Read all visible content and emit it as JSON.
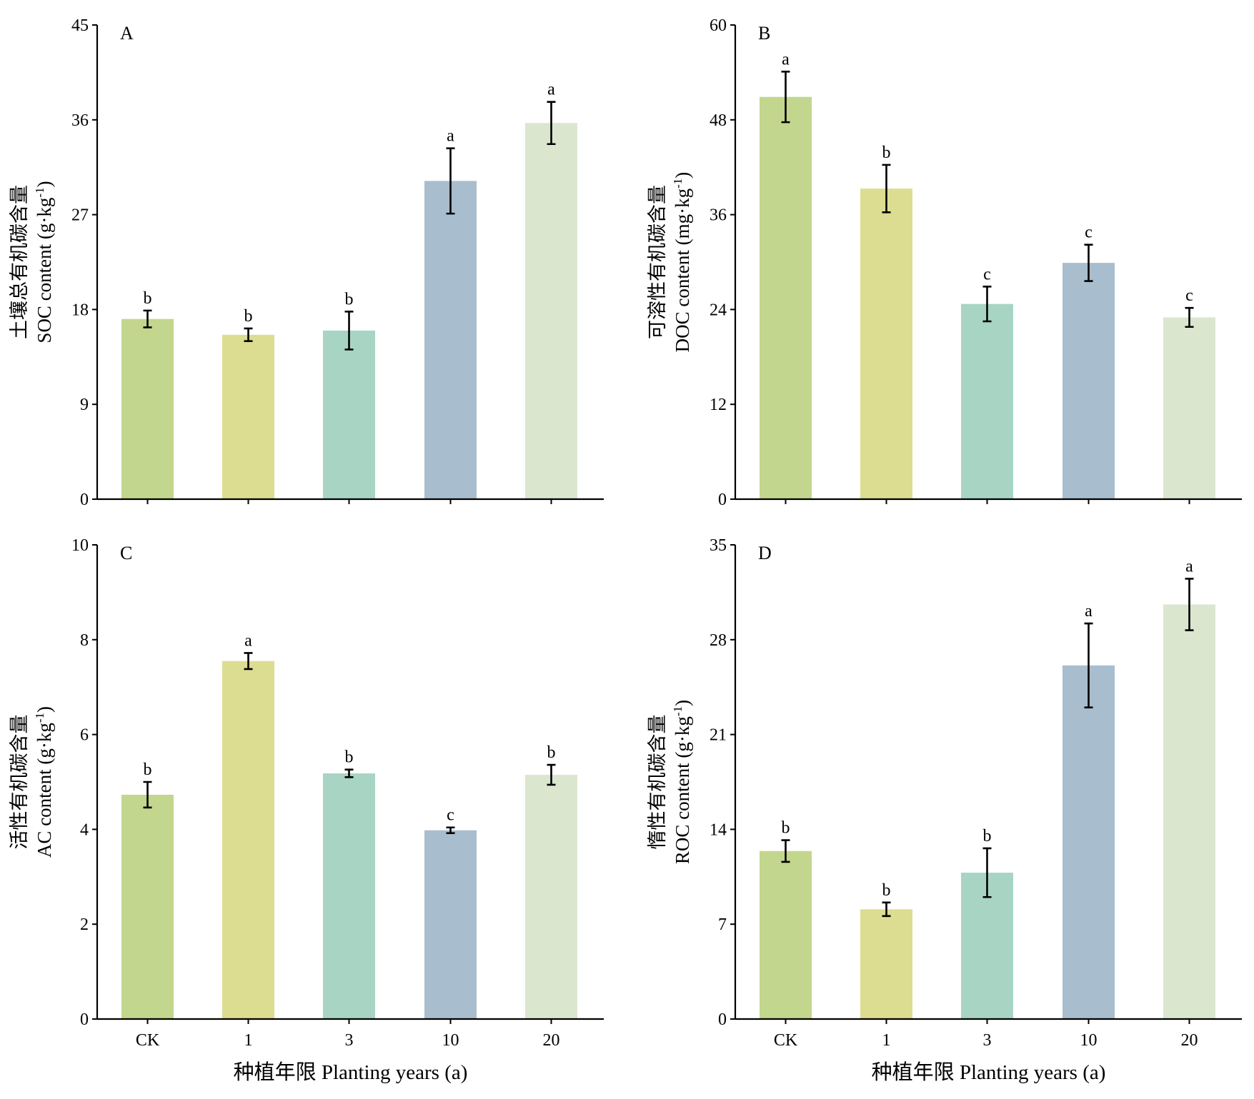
{
  "chart_data": [
    {
      "type": "bar",
      "panel": "A",
      "categories": [
        "CK",
        "1",
        "3",
        "10",
        "20"
      ],
      "values": [
        17.1,
        15.6,
        16.0,
        30.2,
        35.7
      ],
      "errors": [
        0.8,
        0.6,
        1.8,
        3.1,
        2.0
      ],
      "significance": [
        "b",
        "b",
        "b",
        "a",
        "a"
      ],
      "ylabel_cn": "土壤总有机碳含量",
      "ylabel_en": "SOC content (g·kg",
      "ylabel_sup": "-1",
      "ylabel_end": ")",
      "ylim": [
        0,
        45
      ],
      "yticks": [
        "0",
        "9",
        "18",
        "27",
        "36",
        "45"
      ]
    },
    {
      "type": "bar",
      "panel": "B",
      "categories": [
        "CK",
        "1",
        "3",
        "10",
        "20"
      ],
      "values": [
        50.9,
        39.3,
        24.7,
        29.9,
        23.0
      ],
      "errors": [
        3.2,
        3.0,
        2.2,
        2.3,
        1.2
      ],
      "significance": [
        "a",
        "b",
        "c",
        "c",
        "c"
      ],
      "ylabel_cn": "可溶性有机碳含量",
      "ylabel_en": "DOC content (mg·kg",
      "ylabel_sup": "-1",
      "ylabel_end": ")",
      "ylim": [
        0,
        60
      ],
      "yticks": [
        "0",
        "12",
        "24",
        "36",
        "48",
        "60"
      ]
    },
    {
      "type": "bar",
      "panel": "C",
      "categories": [
        "CK",
        "1",
        "3",
        "10",
        "20"
      ],
      "values": [
        4.73,
        7.55,
        5.18,
        3.98,
        5.15
      ],
      "errors": [
        0.27,
        0.17,
        0.08,
        0.06,
        0.21
      ],
      "significance": [
        "b",
        "a",
        "b",
        "c",
        "b"
      ],
      "ylabel_cn": "活性有机碳含量",
      "ylabel_en": "AC content (g·kg",
      "ylabel_sup": "-1",
      "ylabel_end": ")",
      "ylim": [
        0,
        10
      ],
      "yticks": [
        "0",
        "2",
        "4",
        "6",
        "8",
        "10"
      ]
    },
    {
      "type": "bar",
      "panel": "D",
      "categories": [
        "CK",
        "1",
        "3",
        "10",
        "20"
      ],
      "values": [
        12.4,
        8.1,
        10.8,
        26.1,
        30.6
      ],
      "errors": [
        0.8,
        0.5,
        1.8,
        3.1,
        1.9
      ],
      "significance": [
        "b",
        "b",
        "b",
        "a",
        "a"
      ],
      "ylabel_cn": "惰性有机碳含量",
      "ylabel_en": "ROC content (g·kg",
      "ylabel_sup": "-1",
      "ylabel_end": ")",
      "ylim": [
        0,
        35
      ],
      "yticks": [
        "0",
        "7",
        "14",
        "21",
        "28",
        "35"
      ]
    }
  ],
  "xlabel": "种植年限 Planting years (a)",
  "colors": {
    "bars": [
      "#c3d68d",
      "#dddd91",
      "#a8d4c4",
      "#a8bdce",
      "#dbe6cf"
    ],
    "axis": "#000000",
    "background": "#ffffff"
  }
}
